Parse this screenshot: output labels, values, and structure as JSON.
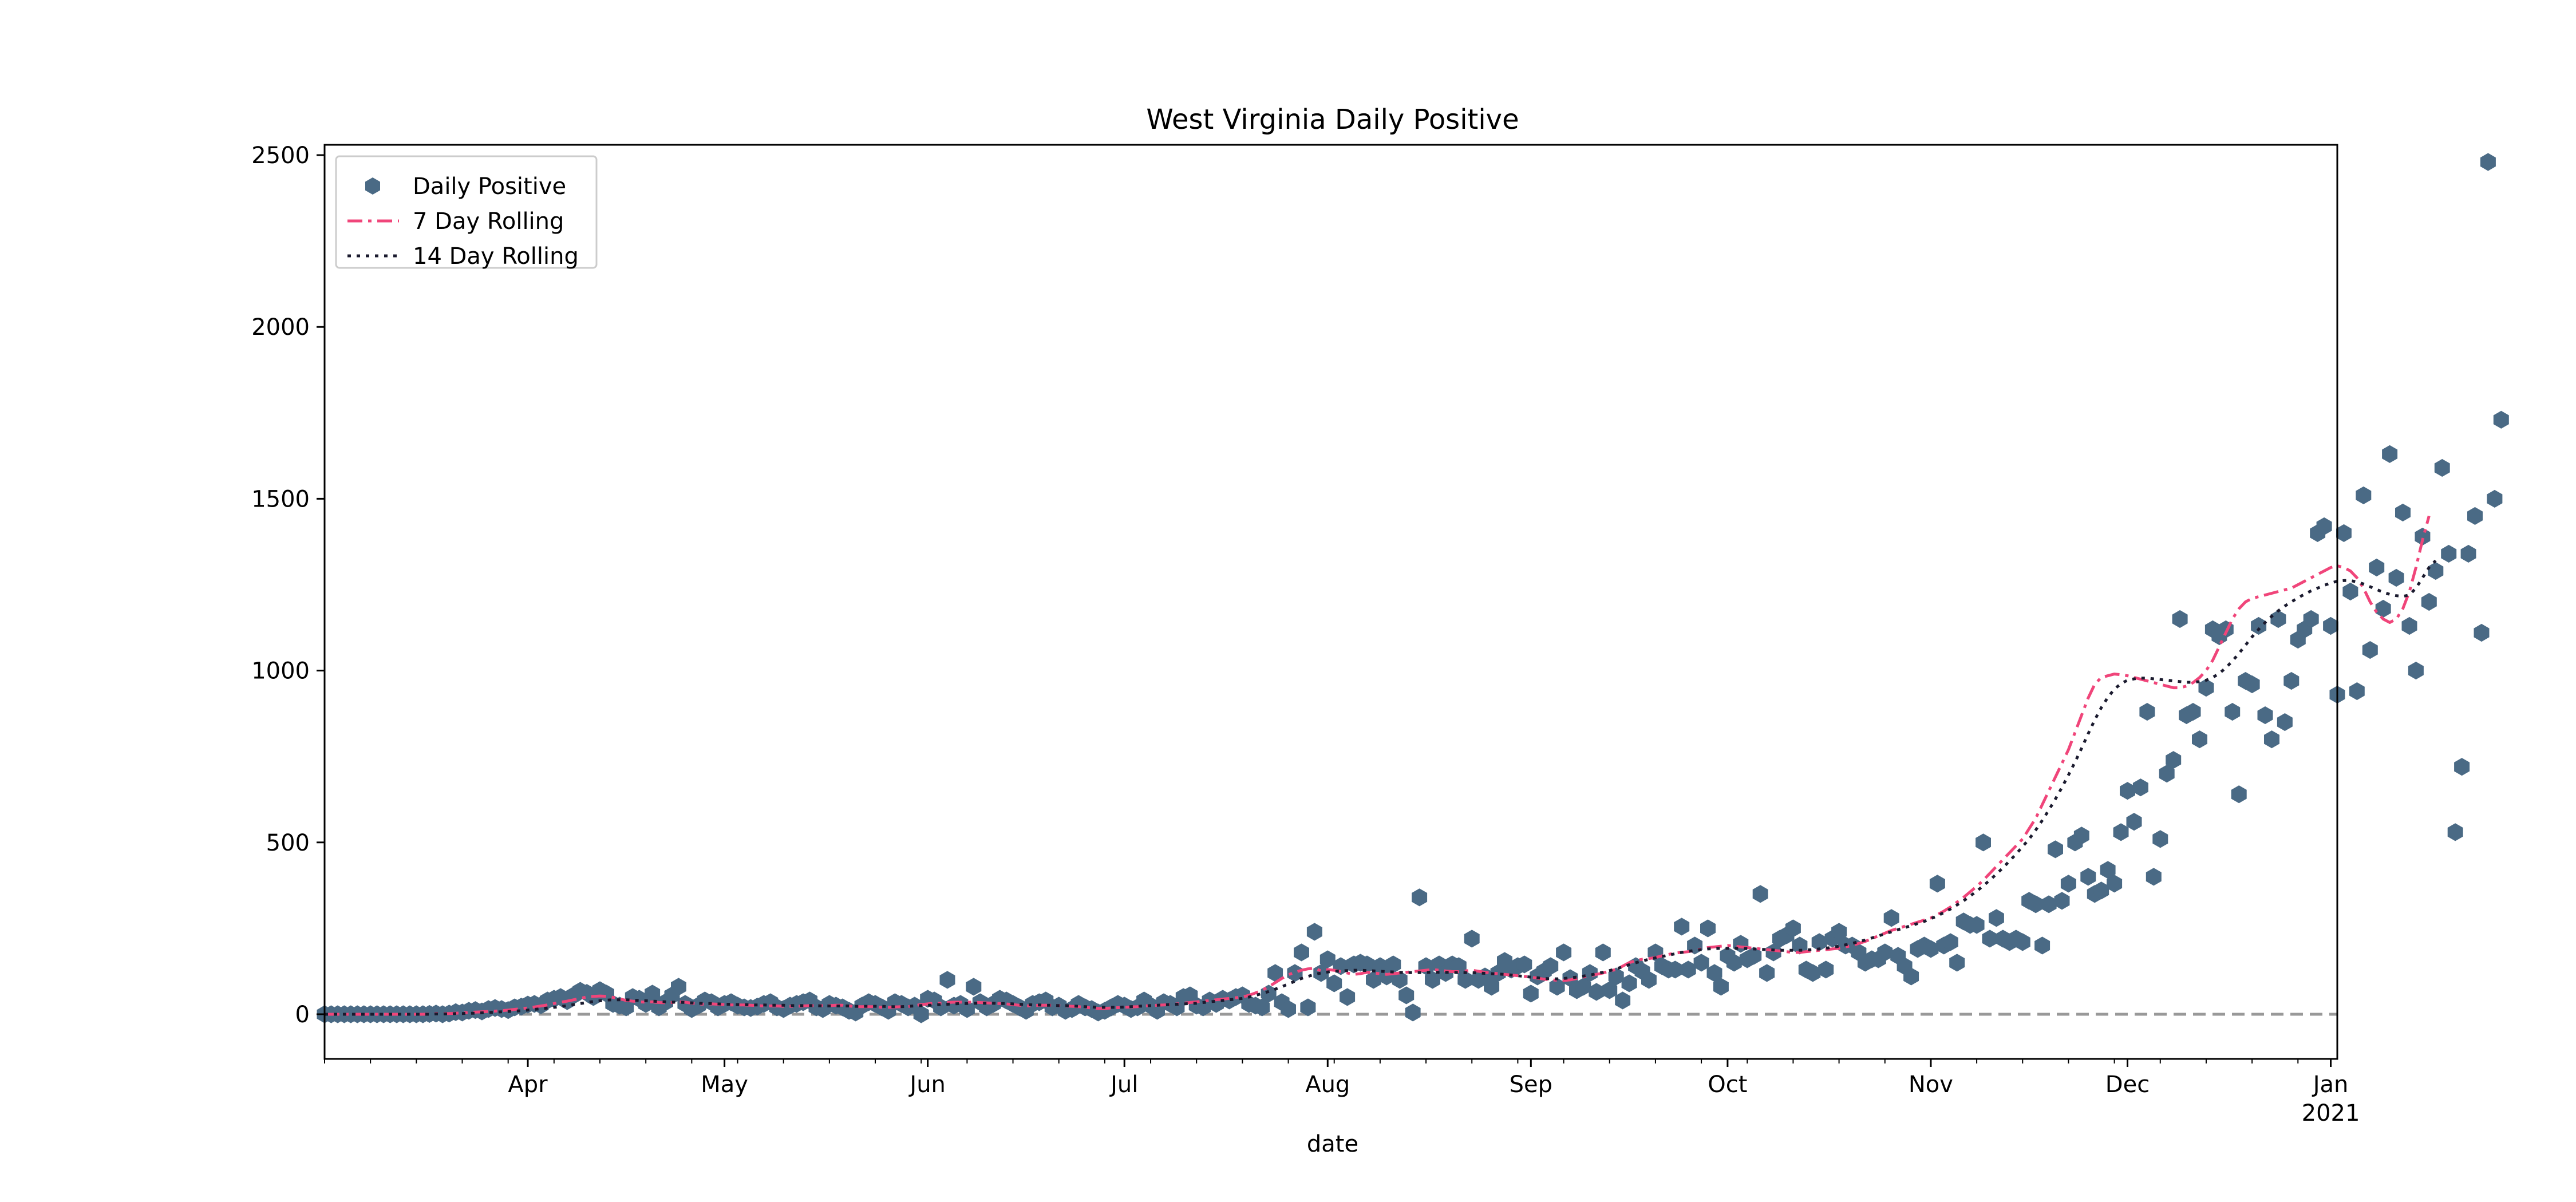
{
  "chart_data": {
    "type": "scatter",
    "title": "West Virginia Daily Positive",
    "xlabel": "date",
    "ylabel": "",
    "x_range": [
      "2020-03-01",
      "2021-01-02"
    ],
    "ylim": [
      -130,
      2530
    ],
    "y_ticks": [
      0,
      500,
      1000,
      1500,
      2000,
      2500
    ],
    "x_ticks": [
      {
        "date": "2020-04-01",
        "label": "Apr",
        "sublabel": ""
      },
      {
        "date": "2020-05-01",
        "label": "May",
        "sublabel": ""
      },
      {
        "date": "2020-06-01",
        "label": "Jun",
        "sublabel": ""
      },
      {
        "date": "2020-07-01",
        "label": "Jul",
        "sublabel": ""
      },
      {
        "date": "2020-08-01",
        "label": "Aug",
        "sublabel": ""
      },
      {
        "date": "2020-09-01",
        "label": "Sep",
        "sublabel": ""
      },
      {
        "date": "2020-10-01",
        "label": "Oct",
        "sublabel": ""
      },
      {
        "date": "2020-11-01",
        "label": "Nov",
        "sublabel": ""
      },
      {
        "date": "2020-12-01",
        "label": "Dec",
        "sublabel": ""
      },
      {
        "date": "2021-01-01",
        "label": "Jan",
        "sublabel": "2021"
      }
    ],
    "legend_position": "upper-left",
    "grid": false,
    "colors": {
      "points": "#4a6a85",
      "rolling7": "#f0457a",
      "rolling14": "#1a1a2e",
      "baseline": "#999999"
    },
    "series": [
      {
        "name": "Daily Positive",
        "style": "markers",
        "start_date": "2020-03-01",
        "values": [
          0,
          0,
          0,
          0,
          0,
          0,
          0,
          0,
          0,
          0,
          0,
          0,
          0,
          0,
          0,
          0,
          1,
          2,
          0,
          2,
          6,
          5,
          10,
          12,
          8,
          15,
          18,
          15,
          12,
          20,
          22,
          28,
          30,
          26,
          40,
          45,
          50,
          38,
          55,
          68,
          62,
          50,
          70,
          60,
          30,
          25,
          20,
          50,
          45,
          30,
          60,
          20,
          35,
          55,
          80,
          30,
          15,
          25,
          40,
          35,
          20,
          30,
          35,
          25,
          20,
          18,
          22,
          30,
          35,
          20,
          15,
          25,
          30,
          35,
          40,
          20,
          15,
          30,
          25,
          20,
          10,
          5,
          25,
          35,
          30,
          20,
          10,
          35,
          30,
          20,
          25,
          0,
          45,
          40,
          20,
          100,
          25,
          30,
          15,
          80,
          35,
          20,
          30,
          45,
          40,
          30,
          20,
          10,
          30,
          35,
          40,
          20,
          25,
          10,
          15,
          30,
          20,
          15,
          5,
          10,
          20,
          30,
          25,
          15,
          20,
          40,
          25,
          10,
          35,
          30,
          20,
          50,
          55,
          25,
          20,
          40,
          30,
          45,
          40,
          50,
          55,
          30,
          25,
          20,
          60,
          120,
          35,
          15,
          120,
          180,
          20,
          240,
          120,
          160,
          90,
          140,
          50,
          145,
          150,
          145,
          100,
          140,
          110,
          145,
          100,
          55,
          5,
          340,
          140,
          100,
          145,
          120,
          145,
          140,
          100,
          220,
          100,
          110,
          80,
          120,
          155,
          130,
          140,
          145,
          60,
          110,
          125,
          140,
          80,
          180,
          105,
          70,
          80,
          120,
          65,
          180,
          70,
          110,
          40,
          90,
          140,
          125,
          100,
          180,
          140,
          130,
          130,
          255,
          130,
          200,
          150,
          250,
          120,
          80,
          170,
          150,
          205,
          160,
          170,
          350,
          120,
          180,
          220,
          230,
          250,
          200,
          130,
          120,
          210,
          130,
          220,
          240,
          200,
          200,
          180,
          150,
          160,
          160,
          180,
          280,
          170,
          140,
          110,
          190,
          200,
          190,
          380,
          200,
          210,
          150,
          270,
          260,
          260,
          500,
          220,
          280,
          220,
          210,
          220,
          210,
          330,
          320,
          200,
          320,
          480,
          330,
          380,
          500,
          520,
          400,
          350,
          360,
          420,
          380,
          530,
          650,
          560,
          660,
          880,
          400,
          510,
          700,
          740,
          1150,
          870,
          880,
          800,
          950,
          1120,
          1100,
          1120,
          880,
          640,
          970,
          960,
          1130,
          870,
          800,
          1150,
          850,
          970,
          1090,
          1120,
          1150,
          1400,
          1420,
          1130,
          930,
          1400,
          1230,
          940,
          1510,
          1060,
          1300,
          1180,
          1630,
          1270,
          1460,
          1130,
          1000,
          1390,
          1200,
          1290,
          1590,
          1340,
          530,
          720,
          1340,
          1450,
          1110,
          2480,
          1500,
          1730
        ]
      },
      {
        "name": "7 Day Rolling",
        "style": "dashdot",
        "start_date": "2020-03-01",
        "values": [
          0,
          0,
          0,
          0,
          0,
          0,
          0,
          0,
          0,
          0,
          0,
          0,
          0,
          0,
          0,
          0,
          1,
          2,
          2,
          2,
          3,
          4,
          5,
          6,
          7,
          8,
          9,
          10,
          12,
          14,
          16,
          18,
          21,
          24,
          27,
          31,
          35,
          38,
          42,
          46,
          50,
          52,
          53,
          52,
          49,
          45,
          40,
          38,
          36,
          35,
          36,
          34,
          33,
          34,
          36,
          35,
          32,
          30,
          29,
          30,
          29,
          28,
          27,
          27,
          27,
          26,
          25,
          24,
          24,
          24,
          23,
          23,
          23,
          24,
          25,
          25,
          25,
          25,
          26,
          26,
          24,
          22,
          22,
          22,
          22,
          20,
          20,
          21,
          22,
          22,
          25,
          28,
          30,
          32,
          32,
          34,
          35,
          35,
          35,
          35,
          34,
          33,
          32,
          31,
          30,
          28,
          26,
          24,
          25,
          26,
          26,
          26,
          25,
          24,
          23,
          22,
          20,
          18,
          17,
          17,
          18,
          19,
          20,
          21,
          22,
          24,
          25,
          26,
          27,
          28,
          30,
          32,
          34,
          36,
          38,
          40,
          42,
          44,
          46,
          48,
          50,
          55,
          62,
          70,
          80,
          92,
          104,
          115,
          122,
          128,
          132,
          134,
          126,
          130,
          128,
          124,
          120,
          116,
          118,
          122,
          120,
          118,
          116,
          118,
          120,
          122,
          124,
          126,
          128,
          130,
          128,
          126,
          124,
          124,
          126,
          128,
          125,
          122,
          120,
          118,
          116,
          114,
          112,
          110,
          108,
          105,
          102,
          100,
          99,
          98,
          100,
          104,
          108,
          112,
          116,
          120,
          126,
          130,
          140,
          150,
          156,
          160,
          162,
          165,
          170,
          174,
          178,
          180,
          182,
          186,
          190,
          194,
          196,
          198,
          200,
          198,
          196,
          194,
          192,
          190,
          188,
          186,
          184,
          182,
          180,
          180,
          182,
          184,
          186,
          188,
          190,
          192,
          196,
          200,
          206,
          212,
          220,
          228,
          236,
          244,
          250,
          256,
          262,
          268,
          274,
          280,
          290,
          300,
          312,
          326,
          340,
          356,
          372,
          390,
          410,
          430,
          450,
          470,
          490,
          510,
          540,
          570,
          610,
          650,
          690,
          730,
          770,
          820,
          870,
          920,
          960,
          980,
          985,
          990,
          988,
          985,
          980,
          975,
          970,
          965,
          960,
          955,
          950,
          950,
          955,
          965,
          980,
          1000,
          1030,
          1070,
          1110,
          1150,
          1180,
          1200,
          1210,
          1215,
          1220,
          1225,
          1230,
          1235,
          1240,
          1250,
          1260,
          1270,
          1280,
          1290,
          1300,
          1305,
          1300,
          1290,
          1270,
          1240,
          1200,
          1170,
          1150,
          1140,
          1150,
          1180,
          1230,
          1300,
          1380,
          1450
        ]
      },
      {
        "name": "14 Day Rolling",
        "style": "dotted",
        "start_date": "2020-03-01",
        "values": [
          0,
          0,
          0,
          0,
          0,
          0,
          0,
          0,
          0,
          0,
          0,
          0,
          0,
          0,
          0,
          0,
          0,
          1,
          1,
          1,
          2,
          2,
          3,
          3,
          4,
          5,
          6,
          7,
          8,
          9,
          10,
          12,
          14,
          16,
          18,
          20,
          22,
          25,
          28,
          31,
          34,
          37,
          39,
          41,
          42,
          42,
          42,
          41,
          40,
          39,
          38,
          37,
          36,
          35,
          35,
          34,
          33,
          32,
          31,
          31,
          30,
          29,
          29,
          28,
          28,
          27,
          27,
          27,
          26,
          26,
          26,
          25,
          25,
          25,
          25,
          25,
          24,
          24,
          24,
          24,
          24,
          23,
          23,
          23,
          23,
          23,
          22,
          22,
          22,
          23,
          24,
          25,
          26,
          27,
          28,
          29,
          30,
          31,
          31,
          32,
          32,
          32,
          32,
          31,
          31,
          30,
          29,
          28,
          27,
          27,
          26,
          26,
          25,
          25,
          24,
          23,
          22,
          21,
          20,
          20,
          20,
          20,
          21,
          22,
          23,
          24,
          25,
          26,
          27,
          28,
          29,
          30,
          31,
          32,
          34,
          36,
          38,
          40,
          42,
          44,
          46,
          50,
          55,
          60,
          66,
          73,
          80,
          88,
          96,
          104,
          110,
          116,
          120,
          123,
          125,
          126,
          127,
          128,
          128,
          127,
          126,
          125,
          124,
          123,
          122,
          121,
          121,
          121,
          122,
          122,
          122,
          122,
          122,
          121,
          121,
          121,
          120,
          119,
          118,
          117,
          116,
          114,
          112,
          110,
          108,
          106,
          104,
          103,
          103,
          104,
          106,
          108,
          111,
          114,
          118,
          122,
          127,
          132,
          138,
          144,
          150,
          155,
          160,
          164,
          168,
          172,
          176,
          180,
          183,
          186,
          188,
          190,
          191,
          192,
          192,
          192,
          192,
          191,
          190,
          189,
          188,
          187,
          186,
          186,
          186,
          186,
          187,
          188,
          190,
          192,
          195,
          198,
          202,
          206,
          211,
          216,
          222,
          228,
          234,
          240,
          246,
          252,
          258,
          264,
          270,
          278,
          286,
          296,
          306,
          318,
          330,
          344,
          358,
          374,
          390,
          408,
          426,
          446,
          466,
          488,
          510,
          536,
          564,
          594,
          626,
          660,
          696,
          734,
          774,
          816,
          856,
          892,
          922,
          946,
          962,
          972,
          976,
          978,
          978,
          976,
          974,
          972,
          970,
          968,
          966,
          966,
          968,
          972,
          980,
          992,
          1008,
          1028,
          1050,
          1074,
          1098,
          1120,
          1140,
          1158,
          1174,
          1188,
          1200,
          1212,
          1222,
          1232,
          1240,
          1248,
          1255,
          1260,
          1262,
          1262,
          1258,
          1252,
          1244,
          1236,
          1228,
          1222,
          1218,
          1216,
          1220,
          1240,
          1270,
          1300,
          1320
        ]
      }
    ]
  }
}
